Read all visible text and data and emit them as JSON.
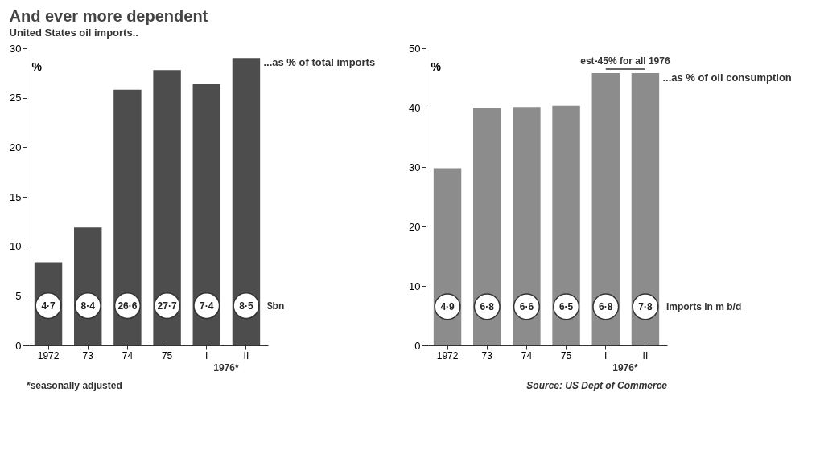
{
  "chart_data": [
    {
      "type": "bar",
      "title": "And ever more dependent",
      "subtitle": "United States oil imports..",
      "ylabel": "%",
      "categories": [
        "1972",
        "73",
        "74",
        "75",
        "I",
        "II"
      ],
      "series": [
        {
          "name": "...as % of total imports",
          "color": "#4d4d4d",
          "values": [
            8.4,
            11.9,
            25.8,
            27.8,
            26.4,
            29
          ]
        }
      ],
      "ylim": [
        0,
        30
      ],
      "yticks": [
        0,
        5,
        10,
        15,
        20,
        25,
        30
      ],
      "annotations": [
        {
          "text": "4·7",
          "x": "1972",
          "y": 4
        },
        {
          "text": "8·4",
          "x": "73",
          "y": 4
        },
        {
          "text": "26·6",
          "x": "74",
          "y": 4
        },
        {
          "text": "27·7",
          "x": "75",
          "y": 4
        },
        {
          "text": "7·4",
          "x": "I",
          "y": 4
        },
        {
          "text": "8·5",
          "x": "II",
          "y": 4
        },
        "$bn",
        "1976*",
        "*seasonally adjusted"
      ]
    },
    {
      "type": "bar",
      "ylabel": "%",
      "categories": [
        "1972",
        "73",
        "74",
        "75",
        "I",
        "II"
      ],
      "series": [
        {
          "name": "...as % of oil consumption",
          "color": "#8c8c8c",
          "values": [
            29.8,
            39.9,
            40.1,
            40.3,
            45.8,
            45.8
          ]
        }
      ],
      "ylim": [
        0,
        50
      ],
      "yticks": [
        0,
        10,
        20,
        30,
        40,
        50
      ],
      "annotations": [
        {
          "text": "4·9",
          "x": "1972",
          "y": 6.5
        },
        {
          "text": "6·8",
          "x": "73",
          "y": 6.5
        },
        {
          "text": "6·6",
          "x": "74",
          "y": 6.5
        },
        {
          "text": "6·5",
          "x": "75",
          "y": 6.5
        },
        {
          "text": "6·8",
          "x": "I",
          "y": 6.5
        },
        {
          "text": "7·8",
          "x": "II",
          "y": 6.5
        },
        "est-45% for all 1976",
        "Imports in m b/d",
        "1976*",
        "Source: US Dept of Commerce"
      ]
    }
  ]
}
